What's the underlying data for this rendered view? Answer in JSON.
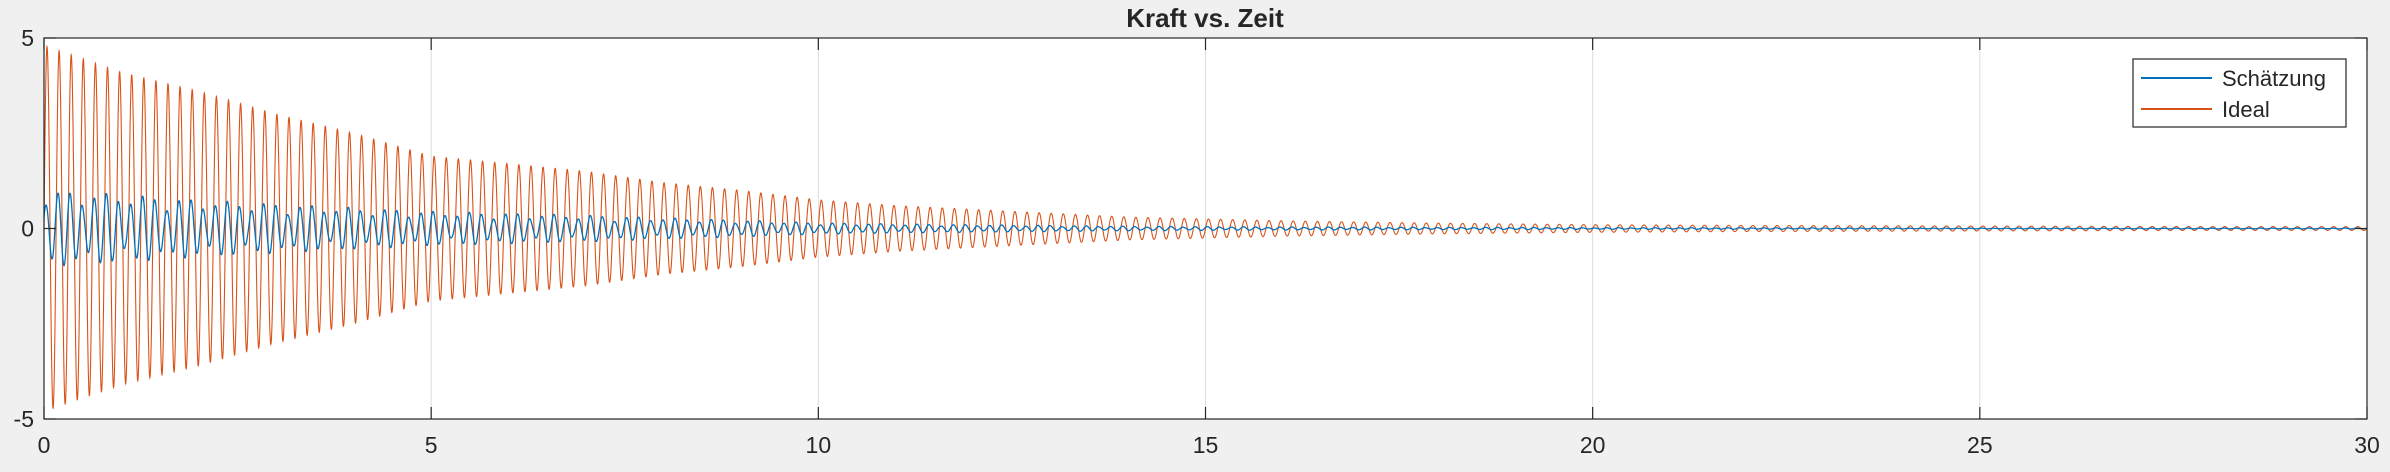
{
  "chart_data": {
    "type": "line",
    "title": "Kraft vs. Zeit",
    "xlabel": "",
    "ylabel": "",
    "xlim": [
      0,
      30
    ],
    "ylim": [
      -5,
      5
    ],
    "x_ticks": [
      0,
      5,
      10,
      15,
      20,
      25,
      30
    ],
    "y_ticks": [
      -5,
      0,
      5
    ],
    "x_tick_labels": [
      "0",
      "5",
      "10",
      "15",
      "20",
      "25",
      "30"
    ],
    "y_tick_labels": [
      "-5",
      "0",
      "5"
    ],
    "grid": "x-only",
    "legend_position": "top-right",
    "series": [
      {
        "name": "Schätzung",
        "color": "#0072BD",
        "description": "damped oscillation, amplitude about 1.0 near t=0 decaying to about 0.05 by t=20",
        "x": [
          0,
          1,
          2,
          3,
          4,
          5,
          6,
          7,
          8,
          9,
          10,
          11,
          12,
          13,
          14,
          15,
          16,
          17,
          18,
          19,
          20,
          22,
          24,
          26,
          28,
          30
        ],
        "amplitude": [
          1.0,
          0.9,
          0.75,
          0.65,
          0.55,
          0.45,
          0.4,
          0.35,
          0.28,
          0.22,
          0.15,
          0.12,
          0.1,
          0.08,
          0.06,
          0.05,
          0.04,
          0.04,
          0.03,
          0.03,
          0.02,
          0.02,
          0.01,
          0.01,
          0.01,
          0.01
        ]
      },
      {
        "name": "Ideal",
        "color": "#D95319",
        "description": "damped oscillation, amplitude about 4.8 near t=0 decaying to about 0.05 at t=30",
        "x": [
          0,
          1,
          2,
          3,
          4,
          5,
          6,
          7,
          8,
          9,
          10,
          11,
          12,
          13,
          14,
          15,
          16,
          17,
          18,
          19,
          20,
          22,
          24,
          26,
          28,
          30
        ],
        "amplitude": [
          4.8,
          4.1,
          3.6,
          3.0,
          2.5,
          1.9,
          1.7,
          1.5,
          1.2,
          1.0,
          0.75,
          0.6,
          0.5,
          0.4,
          0.3,
          0.25,
          0.2,
          0.17,
          0.14,
          0.12,
          0.1,
          0.08,
          0.07,
          0.06,
          0.05,
          0.05
        ]
      }
    ]
  }
}
